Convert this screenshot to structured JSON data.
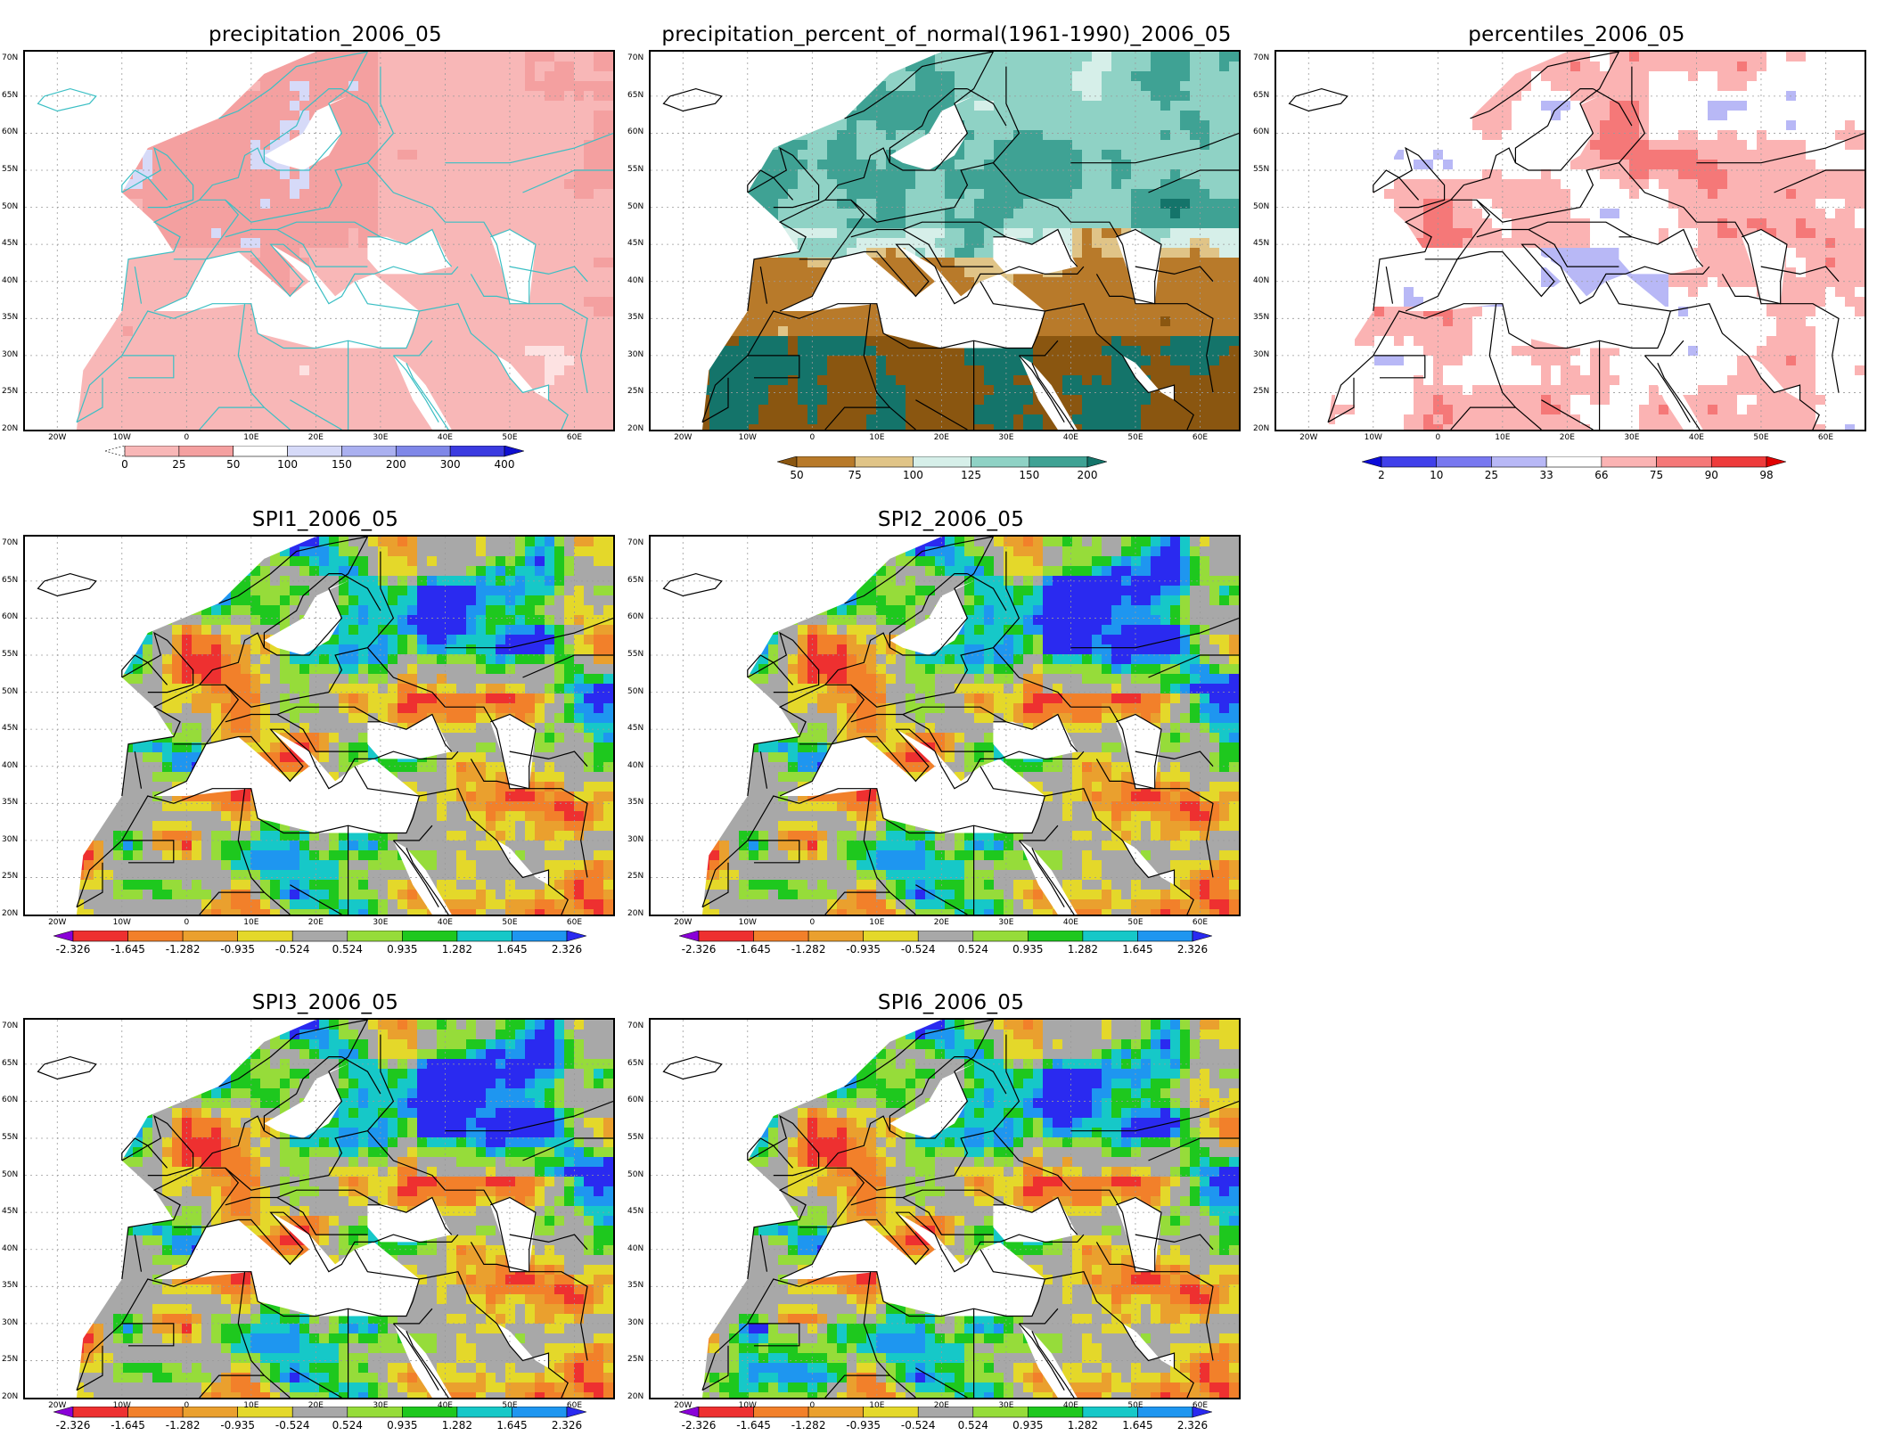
{
  "lat_labels": [
    "70N",
    "65N",
    "60N",
    "55N",
    "50N",
    "45N",
    "40N",
    "35N",
    "30N",
    "25N",
    "20N"
  ],
  "lon_labels": [
    "20W",
    "10W",
    "0",
    "10E",
    "20E",
    "30E",
    "40E",
    "50E",
    "60E"
  ],
  "colors": {
    "land_outline": "#000000",
    "outline_cyan": "#3bbfc4",
    "missing": "#ffffff",
    "grid": "#9a9a9a"
  },
  "scales": {
    "precip": {
      "labels": [
        "0",
        "25",
        "50",
        "100",
        "150",
        "200",
        "300",
        "400"
      ],
      "colors": [
        "#fde2e2",
        "#f8b7b7",
        "#f4a0a0",
        "#ffffff",
        "#d6daf8",
        "#aab0f0",
        "#7f87e8",
        "#3b3be0",
        "#1010d0"
      ]
    },
    "percent": {
      "labels": [
        "50",
        "75",
        "100",
        "125",
        "150",
        "200"
      ],
      "colors": [
        "#8a5610",
        "#b87a2a",
        "#e0c487",
        "#d6efe9",
        "#8fd2c5",
        "#3fa294",
        "#14746a"
      ]
    },
    "percentiles": {
      "labels": [
        "2",
        "10",
        "25",
        "33",
        "66",
        "75",
        "90",
        "98"
      ],
      "colors": [
        "#0b0bd9",
        "#4040ea",
        "#7878f0",
        "#b8b8f6",
        "#ffffff",
        "#fbb3b3",
        "#f57878",
        "#ee3b3b",
        "#e00000"
      ]
    },
    "spi": {
      "labels": [
        "-2.326",
        "-1.645",
        "-1.282",
        "-0.935",
        "-0.524",
        "0.524",
        "0.935",
        "1.282",
        "1.645",
        "2.326"
      ],
      "colors": [
        "#8a00d8",
        "#ee3030",
        "#f2802a",
        "#eaa02e",
        "#e4d82a",
        "#a8a8a8",
        "#96dc3a",
        "#1ec81e",
        "#16c8c8",
        "#1e96f0",
        "#2a2af0"
      ]
    }
  },
  "panels": [
    {
      "id": "precip",
      "title": "precipitation_2006_05",
      "scale": "precip",
      "style": "precip"
    },
    {
      "id": "percent",
      "title": "precipitation_percent_of_normal(1961-1990)_2006_05",
      "scale": "percent",
      "style": "percent"
    },
    {
      "id": "percentiles",
      "title": "percentiles_2006_05",
      "scale": "percentiles",
      "style": "percentiles"
    },
    {
      "id": "spi1",
      "title": "SPI1_2006_05",
      "scale": "spi",
      "style": "spi1"
    },
    {
      "id": "spi2",
      "title": "SPI2_2006_05",
      "scale": "spi",
      "style": "spi2"
    },
    {
      "id": "spi3",
      "title": "SPI3_2006_05",
      "scale": "spi",
      "style": "spi3"
    },
    {
      "id": "spi6",
      "title": "SPI6_2006_05",
      "scale": "spi",
      "style": "spi6"
    }
  ]
}
